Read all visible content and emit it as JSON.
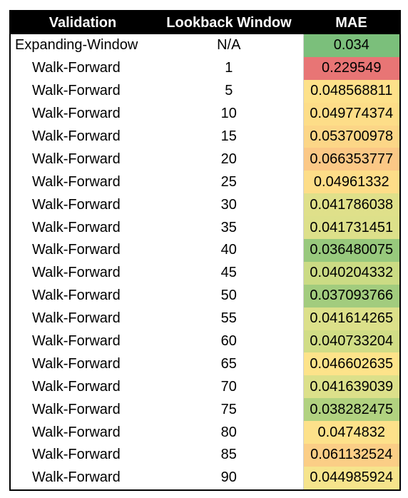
{
  "table": {
    "headers": [
      "Validation",
      "Lookback Window",
      "MAE"
    ],
    "rows": [
      {
        "validation": "Expanding-Window",
        "lookback": "N/A",
        "mae": "0.034",
        "color": "#7bbf7b"
      },
      {
        "validation": "Walk-Forward",
        "lookback": "1",
        "mae": "0.229549",
        "color": "#e87575"
      },
      {
        "validation": "Walk-Forward",
        "lookback": "5",
        "mae": "0.048568811",
        "color": "#fde18a"
      },
      {
        "validation": "Walk-Forward",
        "lookback": "10",
        "mae": "0.049774374",
        "color": "#fddd88"
      },
      {
        "validation": "Walk-Forward",
        "lookback": "15",
        "mae": "0.053700978",
        "color": "#fcd687"
      },
      {
        "validation": "Walk-Forward",
        "lookback": "20",
        "mae": "0.066353777",
        "color": "#fbc886"
      },
      {
        "validation": "Walk-Forward",
        "lookback": "25",
        "mae": "0.04961332",
        "color": "#fddd88"
      },
      {
        "validation": "Walk-Forward",
        "lookback": "30",
        "mae": "0.041786038",
        "color": "#dfe08a"
      },
      {
        "validation": "Walk-Forward",
        "lookback": "35",
        "mae": "0.041731451",
        "color": "#dde08a"
      },
      {
        "validation": "Walk-Forward",
        "lookback": "40",
        "mae": "0.036480075",
        "color": "#98c97d"
      },
      {
        "validation": "Walk-Forward",
        "lookback": "45",
        "mae": "0.040204332",
        "color": "#cbdb84"
      },
      {
        "validation": "Walk-Forward",
        "lookback": "50",
        "mae": "0.037093766",
        "color": "#a2cc7e"
      },
      {
        "validation": "Walk-Forward",
        "lookback": "55",
        "mae": "0.041614265",
        "color": "#dce08a"
      },
      {
        "validation": "Walk-Forward",
        "lookback": "60",
        "mae": "0.040733204",
        "color": "#d1dd86"
      },
      {
        "validation": "Walk-Forward",
        "lookback": "65",
        "mae": "0.046602635",
        "color": "#fde38a"
      },
      {
        "validation": "Walk-Forward",
        "lookback": "70",
        "mae": "0.041639039",
        "color": "#dce08a"
      },
      {
        "validation": "Walk-Forward",
        "lookback": "75",
        "mae": "0.038282475",
        "color": "#b1d280"
      },
      {
        "validation": "Walk-Forward",
        "lookback": "80",
        "mae": "0.0474832",
        "color": "#fde18a"
      },
      {
        "validation": "Walk-Forward",
        "lookback": "85",
        "mae": "0.061132524",
        "color": "#fbce86"
      },
      {
        "validation": "Walk-Forward",
        "lookback": "90",
        "mae": "0.044985924",
        "color": "#f6e48c"
      }
    ]
  }
}
